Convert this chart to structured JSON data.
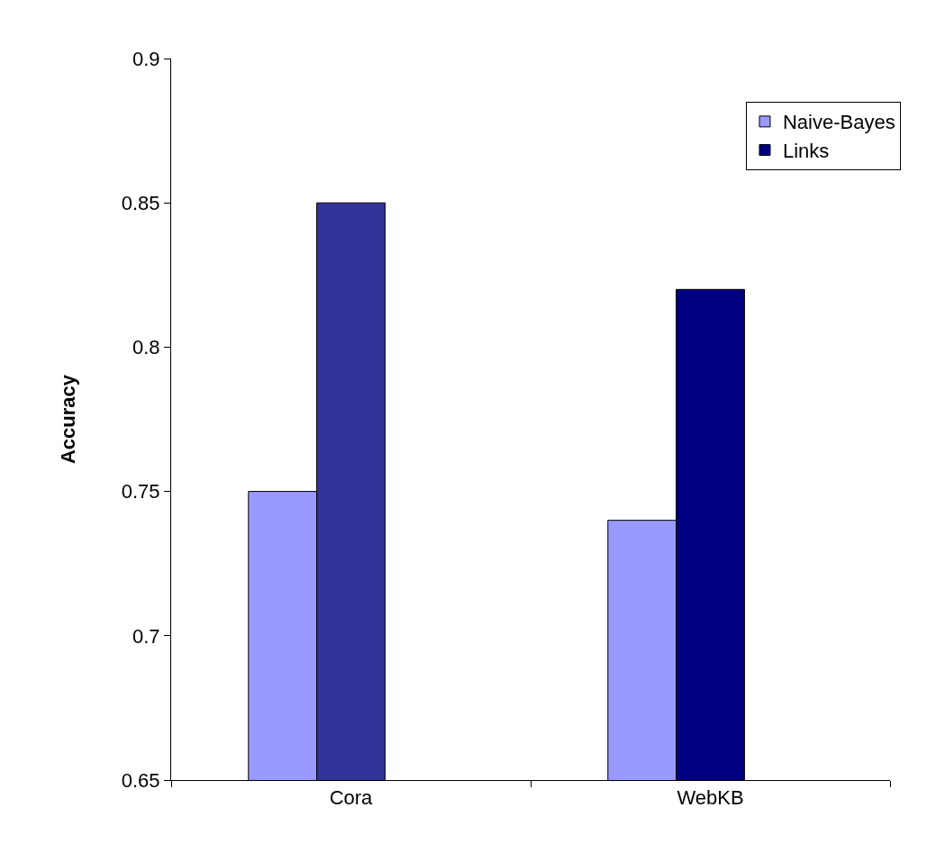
{
  "chart_data": {
    "type": "bar",
    "ylabel": "Accuracy",
    "categories": [
      "Cora",
      "WebKB"
    ],
    "series": [
      {
        "name": "Naive-Bayes",
        "color": "#9999ff",
        "values": [
          0.75,
          0.74
        ]
      },
      {
        "name": "Links",
        "color": "#000080",
        "colors": [
          "#333399",
          "#000080"
        ],
        "values": [
          0.85,
          0.82
        ]
      }
    ],
    "ylim": [
      0.65,
      0.9
    ],
    "yticks": [
      0.65,
      0.7,
      0.75,
      0.8,
      0.85,
      0.9
    ],
    "grid": false,
    "legend": "top right"
  }
}
